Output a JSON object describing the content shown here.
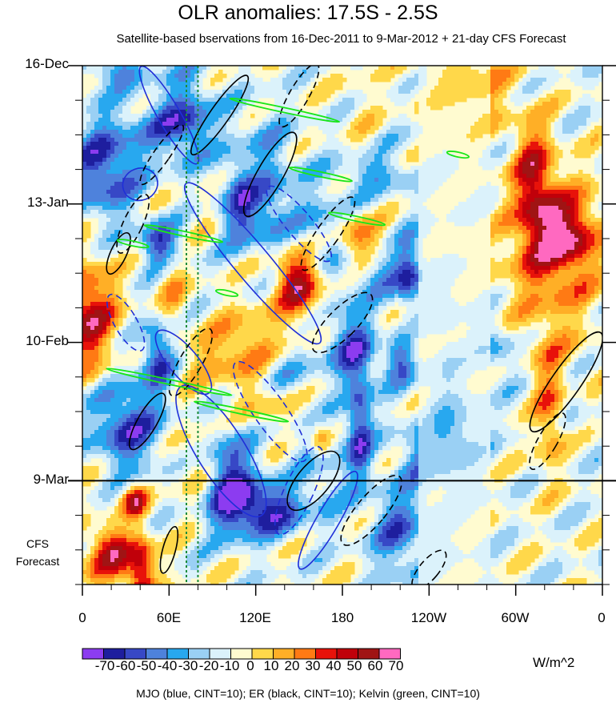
{
  "title": "OLR anomalies: 17.5S - 2.5S",
  "subtitle": "Satellite-based bservations from 16-Dec-2011 to 9-Mar-2012 + 21-day CFS Forecast",
  "forecast_label": [
    "CFS",
    "Forecast"
  ],
  "units": "W/m^2",
  "footer": "MJO (blue, CINT=10); ER (black, CINT=10); Kelvin (green, CINT=10)",
  "colors": {
    "colorbar": [
      "#8c3cf0",
      "#1e1e9e",
      "#3748c6",
      "#4e82dc",
      "#28a8ef",
      "#9ad0f4",
      "#dbf2fb",
      "#fffbd0",
      "#ffd84a",
      "#ffaf26",
      "#ff7a14",
      "#e8120a",
      "#c0000a",
      "#a01414",
      "#ff69c0"
    ],
    "mjo": "#1f2fd8",
    "er": "#000000",
    "kelvin": "#19e619",
    "reference_lines": "#1d8c3a"
  },
  "chart_data": {
    "type": "heatmap",
    "xlabel": "",
    "ylabel": "",
    "x_ticks": [
      "0",
      "60E",
      "120E",
      "180",
      "120W",
      "60W",
      "0"
    ],
    "x_range_deg": [
      0,
      360
    ],
    "y_ticks": [
      "16-Dec",
      "13-Jan",
      "10-Feb",
      "9-Mar"
    ],
    "y_tick_days_from_start": [
      0,
      28,
      56,
      84
    ],
    "observation_end_day": 84,
    "forecast_days": 21,
    "colorbar_labels": [
      "-70",
      "-60",
      "-50",
      "-40",
      "-30",
      "-20",
      "-10",
      "0",
      "10",
      "20",
      "30",
      "40",
      "50",
      "60",
      "70"
    ],
    "reference_longitudes_deg": [
      72,
      80
    ],
    "overlays": [
      {
        "name": "MJO",
        "color": "blue",
        "cint": 10
      },
      {
        "name": "ER",
        "color": "black",
        "cint": 10
      },
      {
        "name": "Kelvin",
        "color": "green",
        "cint": 10
      }
    ]
  }
}
